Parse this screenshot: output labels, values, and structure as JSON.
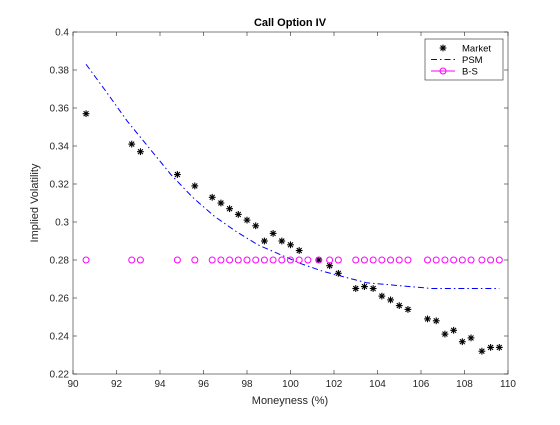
{
  "chart_data": {
    "type": "scatter",
    "title": "Call Option IV",
    "xlabel": "Moneyness (%)",
    "ylabel": "Implied Volatility",
    "xlim": [
      90,
      110
    ],
    "ylim": [
      0.22,
      0.4
    ],
    "xticks": [
      90,
      92,
      94,
      96,
      98,
      100,
      102,
      104,
      106,
      108,
      110
    ],
    "yticks": [
      0.22,
      0.24,
      0.26,
      0.28,
      0.3,
      0.32,
      0.34,
      0.36,
      0.38,
      0.4
    ],
    "xtick_labels": [
      "90",
      "92",
      "94",
      "96",
      "98",
      "100",
      "102",
      "104",
      "106",
      "108",
      "110"
    ],
    "ytick_labels": [
      "0.22",
      "0.24",
      "0.26",
      "0.28",
      "0.3",
      "0.32",
      "0.34",
      "0.36",
      "0.38",
      "0.4"
    ],
    "grid": false,
    "legend_position": "top-right",
    "series": [
      {
        "name": "Market",
        "style": "asterisk",
        "color": "#000000",
        "x": [
          90.6,
          92.7,
          93.1,
          94.8,
          95.6,
          96.4,
          96.8,
          97.2,
          97.6,
          98.0,
          98.4,
          98.8,
          99.2,
          99.6,
          100.0,
          100.4,
          101.3,
          101.8,
          102.2,
          103.0,
          103.4,
          103.8,
          104.2,
          104.6,
          105.0,
          105.4,
          106.3,
          106.7,
          107.1,
          107.5,
          107.9,
          108.3,
          108.8,
          109.2,
          109.6
        ],
        "y": [
          0.357,
          0.341,
          0.337,
          0.325,
          0.319,
          0.313,
          0.31,
          0.307,
          0.304,
          0.301,
          0.298,
          0.29,
          0.294,
          0.29,
          0.288,
          0.285,
          0.28,
          0.277,
          0.273,
          0.265,
          0.266,
          0.265,
          0.261,
          0.259,
          0.256,
          0.254,
          0.249,
          0.248,
          0.241,
          0.243,
          0.237,
          0.239,
          0.232,
          0.234,
          0.234
        ]
      },
      {
        "name": "PSM",
        "style": "dash-dot",
        "color": "#0000ff",
        "x": [
          90.6,
          91.5,
          92.5,
          93.5,
          94.5,
          95.5,
          96.5,
          97.5,
          98.5,
          99.5,
          100.5,
          101.5,
          102.5,
          103.5,
          104.5,
          105.5,
          106.5,
          107.5,
          108.5,
          109.6
        ],
        "y": [
          0.383,
          0.369,
          0.353,
          0.339,
          0.325,
          0.313,
          0.303,
          0.295,
          0.288,
          0.283,
          0.278,
          0.274,
          0.271,
          0.268,
          0.267,
          0.266,
          0.265,
          0.265,
          0.265,
          0.265
        ]
      },
      {
        "name": "B-S",
        "style": "circle",
        "color": "#ff00ff",
        "x": [
          90.6,
          92.7,
          93.1,
          94.8,
          95.6,
          96.4,
          96.8,
          97.2,
          97.6,
          98.0,
          98.4,
          98.8,
          99.2,
          99.6,
          100.0,
          100.4,
          100.8,
          101.3,
          101.8,
          102.2,
          103.0,
          103.4,
          103.8,
          104.2,
          104.6,
          105.0,
          105.4,
          106.3,
          106.7,
          107.1,
          107.5,
          107.9,
          108.3,
          108.8,
          109.2,
          109.6
        ],
        "y": [
          0.28,
          0.28,
          0.28,
          0.28,
          0.28,
          0.28,
          0.28,
          0.28,
          0.28,
          0.28,
          0.28,
          0.28,
          0.28,
          0.28,
          0.28,
          0.28,
          0.28,
          0.28,
          0.28,
          0.28,
          0.28,
          0.28,
          0.28,
          0.28,
          0.28,
          0.28,
          0.28,
          0.28,
          0.28,
          0.28,
          0.28,
          0.28,
          0.28,
          0.28,
          0.28,
          0.28
        ]
      }
    ]
  }
}
